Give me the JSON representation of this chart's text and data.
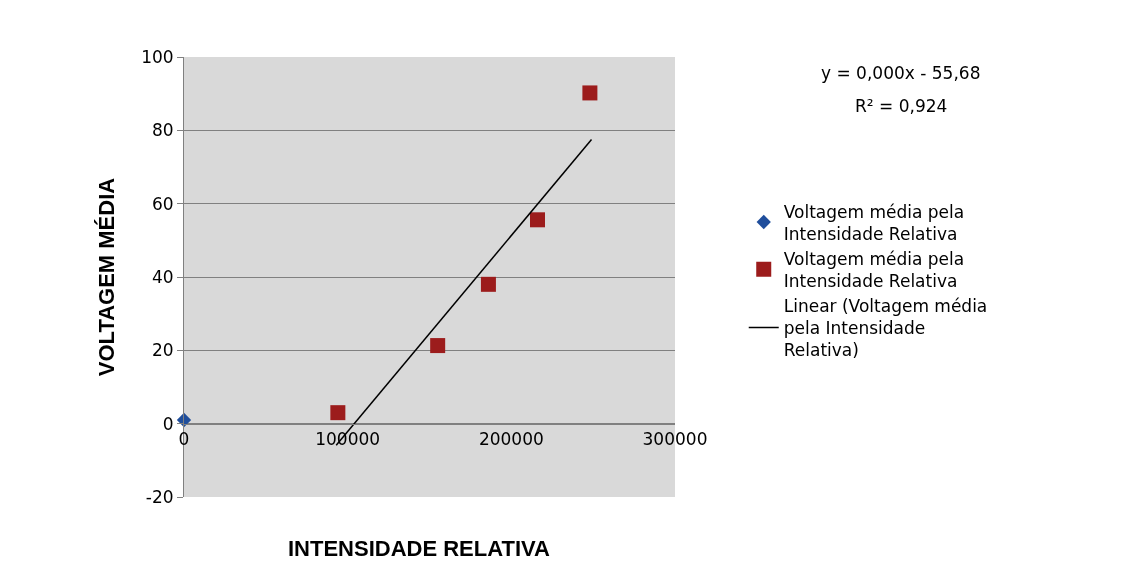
{
  "chart_data": {
    "type": "scatter",
    "xlabel": "INTENSIDADE RELATIVA",
    "ylabel": "VOLTAGEM MÉDIA",
    "xlim": [
      0,
      300000
    ],
    "xticks": [
      0,
      100000,
      200000,
      300000
    ],
    "ylim": [
      -20,
      100
    ],
    "yticks": [
      -20,
      0,
      20,
      40,
      60,
      80,
      100
    ],
    "grid": "y",
    "legend": "right",
    "annotations": [
      "y = 0,000x - 55,68",
      "R² = 0,924"
    ],
    "series": [
      {
        "name": "Voltagem média pela Intensidade Relativa",
        "color": "#1f4e9c",
        "marker": "diamond",
        "x": [
          0
        ],
        "values": [
          1
        ]
      },
      {
        "name": "Voltagem média pela Intensidade Relativa",
        "color": "#9c1c1c",
        "marker": "square",
        "x": [
          94000,
          155000,
          186000,
          216000,
          248000
        ],
        "values": [
          3,
          21.3,
          38,
          55.6,
          90.2
        ]
      },
      {
        "name": "Linear (Voltagem média pela Intensidade Relativa)",
        "type": "line",
        "color": "#000000",
        "marker": "none",
        "x": [
          93000,
          249000
        ],
        "values": [
          -5.9,
          77.5
        ]
      }
    ]
  }
}
